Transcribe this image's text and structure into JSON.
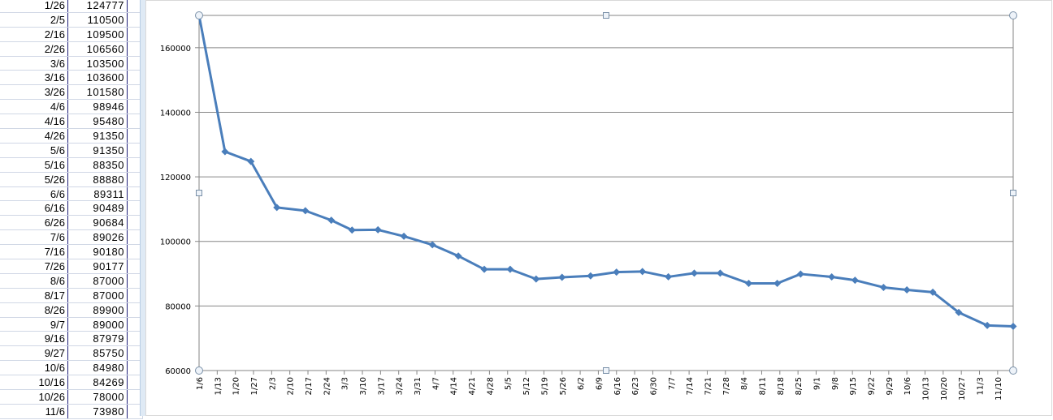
{
  "sheet": {
    "rows": [
      [
        "1/26",
        "124777"
      ],
      [
        "2/5",
        "110500"
      ],
      [
        "2/16",
        "109500"
      ],
      [
        "2/26",
        "106560"
      ],
      [
        "3/6",
        "103500"
      ],
      [
        "3/16",
        "103600"
      ],
      [
        "3/26",
        "101580"
      ],
      [
        "4/6",
        "98946"
      ],
      [
        "4/16",
        "95480"
      ],
      [
        "4/26",
        "91350"
      ],
      [
        "5/6",
        "91350"
      ],
      [
        "5/16",
        "88350"
      ],
      [
        "5/26",
        "88880"
      ],
      [
        "6/6",
        "89311"
      ],
      [
        "6/16",
        "90489"
      ],
      [
        "6/26",
        "90684"
      ],
      [
        "7/6",
        "89026"
      ],
      [
        "7/16",
        "90180"
      ],
      [
        "7/26",
        "90177"
      ],
      [
        "8/6",
        "87000"
      ],
      [
        "8/17",
        "87000"
      ],
      [
        "8/26",
        "89900"
      ],
      [
        "9/7",
        "89000"
      ],
      [
        "9/16",
        "87979"
      ],
      [
        "9/27",
        "85750"
      ],
      [
        "10/6",
        "84980"
      ],
      [
        "10/16",
        "84269"
      ],
      [
        "10/26",
        "78000"
      ],
      [
        "11/6",
        "73980"
      ]
    ]
  },
  "chart_data": {
    "type": "line",
    "title": "",
    "xlabel": "",
    "ylabel": "",
    "x_axis": "date",
    "ylim": [
      60000,
      170000
    ],
    "yticks": [
      60000,
      80000,
      100000,
      120000,
      140000,
      160000
    ],
    "xtick_labels": [
      "1/6",
      "1/13",
      "1/20",
      "1/27",
      "2/3",
      "2/10",
      "2/17",
      "2/24",
      "3/3",
      "3/10",
      "3/17",
      "3/24",
      "3/31",
      "4/7",
      "4/14",
      "4/21",
      "4/28",
      "5/5",
      "5/12",
      "5/19",
      "5/26",
      "6/2",
      "6/9",
      "6/16",
      "6/23",
      "6/30",
      "7/7",
      "7/14",
      "7/21",
      "7/28",
      "8/4",
      "8/11",
      "8/18",
      "8/25",
      "9/1",
      "9/8",
      "9/15",
      "9/22",
      "9/29",
      "10/6",
      "10/13",
      "10/20",
      "10/27",
      "11/3",
      "11/10"
    ],
    "grid": "horizontal",
    "legend": "none",
    "line_color": "#4a7ebb",
    "x": [
      "1/6",
      "1/16",
      "1/26",
      "2/5",
      "2/16",
      "2/26",
      "3/6",
      "3/16",
      "3/26",
      "4/6",
      "4/16",
      "4/26",
      "5/6",
      "5/16",
      "5/26",
      "6/6",
      "6/16",
      "6/26",
      "7/6",
      "7/16",
      "7/26",
      "8/6",
      "8/17",
      "8/26",
      "9/7",
      "9/16",
      "9/27",
      "10/6",
      "10/16",
      "10/26",
      "11/6",
      "11/16"
    ],
    "values": [
      170000,
      127800,
      124777,
      110500,
      109500,
      106560,
      103500,
      103600,
      101580,
      98946,
      95480,
      91350,
      91350,
      88350,
      88880,
      89311,
      90489,
      90684,
      89026,
      90180,
      90177,
      87000,
      87000,
      89900,
      89000,
      87979,
      85750,
      84980,
      84269,
      78000,
      73980,
      73700
    ]
  }
}
